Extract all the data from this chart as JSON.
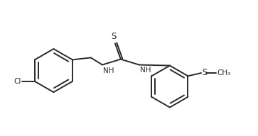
{
  "bg_color": "#ffffff",
  "line_color": "#2a2a2a",
  "line_width": 1.4,
  "figsize": [
    3.63,
    1.92
  ],
  "dpi": 100,
  "xlim": [
    0,
    10
  ],
  "ylim": [
    0,
    5.3
  ]
}
